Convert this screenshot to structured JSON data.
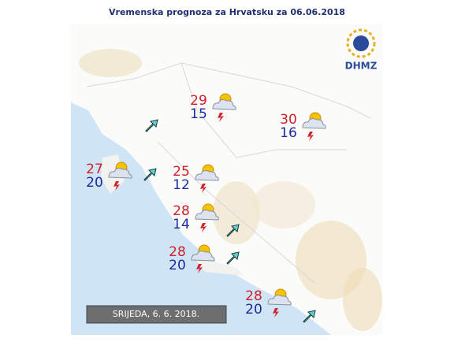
{
  "header": {
    "title": "Vremenska prognoza za Hrvatsku za 06.06.2018"
  },
  "logo": {
    "text": "DHMZ"
  },
  "date_label": "SRIJEDA, 6. 6. 2018.",
  "stations": [
    {
      "max": 29,
      "min": 15
    },
    {
      "max": 30,
      "min": 16
    },
    {
      "max": 27,
      "min": 20
    },
    {
      "max": 25,
      "min": 12
    },
    {
      "max": 28,
      "min": 14
    },
    {
      "max": 28,
      "min": 20
    },
    {
      "max": 28,
      "min": 20
    }
  ]
}
